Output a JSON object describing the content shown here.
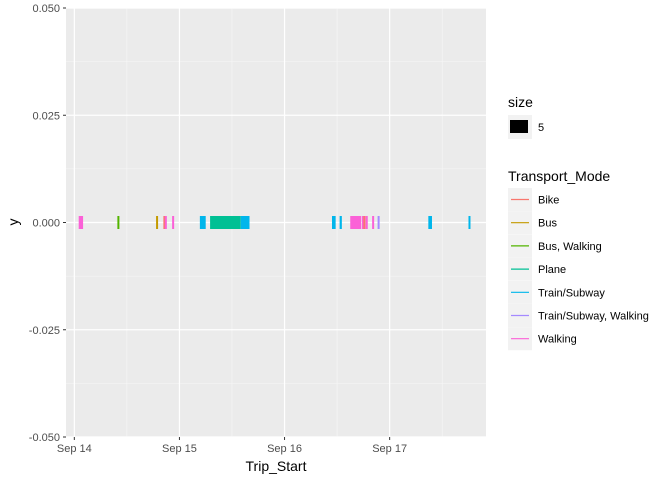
{
  "chart_data": {
    "type": "scatter",
    "title": "",
    "xlabel": "Trip_Start",
    "ylabel": "y",
    "xlim": [
      "2015-09-13 22:06",
      "2015-09-17 22:00"
    ],
    "ylim": [
      -0.05,
      0.05
    ],
    "x_ticks": [
      {
        "value": "2015-09-14",
        "label": "Sep 14"
      },
      {
        "value": "2015-09-15",
        "label": "Sep 15"
      },
      {
        "value": "2015-09-16",
        "label": "Sep 16"
      },
      {
        "value": "2015-09-17",
        "label": "Sep 17"
      }
    ],
    "y_ticks": [
      {
        "value": -0.05,
        "label": "-0.050"
      },
      {
        "value": -0.025,
        "label": "-0.025"
      },
      {
        "value": 0.0,
        "label": "0.000"
      },
      {
        "value": 0.025,
        "label": "0.025"
      },
      {
        "value": 0.05,
        "label": "0.050"
      }
    ],
    "grid": true,
    "legend_position": "right",
    "size_legend": {
      "title": "size",
      "entries": [
        "5"
      ]
    },
    "color_legend": {
      "title": "Transport_Mode",
      "entries": [
        {
          "name": "Bike",
          "color": "#F8766D"
        },
        {
          "name": "Bus",
          "color": "#C49A00"
        },
        {
          "name": "Bus, Walking",
          "color": "#53B400"
        },
        {
          "name": "Plane",
          "color": "#00C094"
        },
        {
          "name": "Train/Subway",
          "color": "#00B6EB"
        },
        {
          "name": "Train/Subway, Walking",
          "color": "#A58AFF"
        },
        {
          "name": "Walking",
          "color": "#FB61D7"
        }
      ]
    },
    "segments": [
      {
        "mode": "Walking",
        "start": "2015-09-14 01:00",
        "end": "2015-09-14 02:00"
      },
      {
        "mode": "Bus, Walking",
        "start": "2015-09-14 09:50",
        "end": "2015-09-14 10:10"
      },
      {
        "mode": "Bus",
        "start": "2015-09-14 18:40",
        "end": "2015-09-14 19:00"
      },
      {
        "mode": "Bike",
        "start": "2015-09-14 20:20",
        "end": "2015-09-14 20:30"
      },
      {
        "mode": "Walking",
        "start": "2015-09-14 20:40",
        "end": "2015-09-14 20:55"
      },
      {
        "mode": "Walking",
        "start": "2015-09-14 22:20",
        "end": "2015-09-14 22:35"
      },
      {
        "mode": "Train/Subway",
        "start": "2015-09-15 04:40",
        "end": "2015-09-15 06:00"
      },
      {
        "mode": "Plane",
        "start": "2015-09-15 07:00",
        "end": "2015-09-15 14:00"
      },
      {
        "mode": "Train/Subway",
        "start": "2015-09-15 14:00",
        "end": "2015-09-15 16:00"
      },
      {
        "mode": "Train/Subway",
        "start": "2015-09-16 10:50",
        "end": "2015-09-16 11:40"
      },
      {
        "mode": "Train/Subway",
        "start": "2015-09-16 12:35",
        "end": "2015-09-16 13:05"
      },
      {
        "mode": "Walking",
        "start": "2015-09-16 15:00",
        "end": "2015-09-16 17:30"
      },
      {
        "mode": "Walking",
        "start": "2015-09-16 17:40",
        "end": "2015-09-16 17:55"
      },
      {
        "mode": "Bike",
        "start": "2015-09-16 18:00",
        "end": "2015-09-16 18:10"
      },
      {
        "mode": "Walking",
        "start": "2015-09-16 18:30",
        "end": "2015-09-16 19:00"
      },
      {
        "mode": "Walking",
        "start": "2015-09-16 20:00",
        "end": "2015-09-16 20:15"
      },
      {
        "mode": "Train/Subway, Walking",
        "start": "2015-09-16 21:15",
        "end": "2015-09-16 21:35"
      },
      {
        "mode": "Train/Subway",
        "start": "2015-09-17 08:50",
        "end": "2015-09-17 09:40"
      },
      {
        "mode": "Train/Subway",
        "start": "2015-09-17 18:00",
        "end": "2015-09-17 18:25"
      }
    ]
  }
}
